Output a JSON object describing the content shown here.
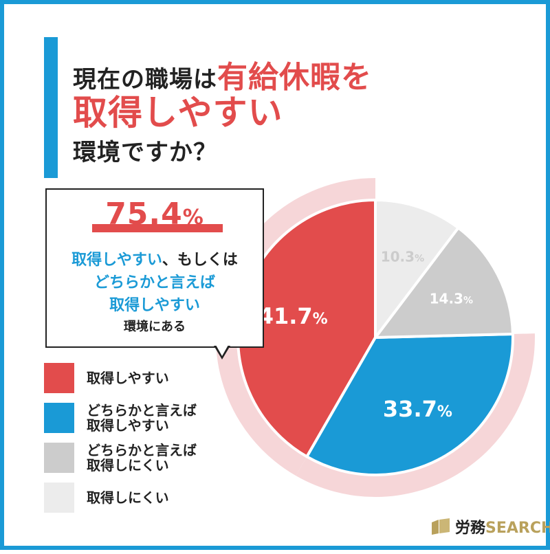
{
  "title": {
    "line1_black": "現在の職場は",
    "line1_red": "有給休暇を",
    "line2_red": "取得しやすい",
    "line3_black": "環境ですか？"
  },
  "callout": {
    "percent_number": "75.4",
    "percent_sign": "%",
    "line1_blue": "取得しやすい",
    "line1_dark": "、もしくは",
    "line2": "どちらかと言えば",
    "line3": "取得しやすい",
    "line4": "環境にある"
  },
  "legend": [
    {
      "label": "取得しやすい",
      "color": "#e24c4c"
    },
    {
      "label": "どちらかと言えば\n取得しやすい",
      "color": "#1a9ad6"
    },
    {
      "label": "どちらかと言えば\n取得しにくい",
      "color": "#cccccc"
    },
    {
      "label": "取得しにくい",
      "color": "#ececec"
    }
  ],
  "chart_data": {
    "type": "pie",
    "title": "現在の職場は有給休暇を取得しやすい環境ですか？",
    "series": [
      {
        "name": "取得しやすい",
        "value": 41.7,
        "label": "41.7",
        "color": "#e24c4c",
        "text_color": "#ffffff"
      },
      {
        "name": "どちらかと言えば取得しやすい",
        "value": 33.7,
        "label": "33.7",
        "color": "#1a9ad6",
        "text_color": "#ffffff"
      },
      {
        "name": "どちらかと言えば取得しにくい",
        "value": 14.3,
        "label": "14.3",
        "color": "#cccccc",
        "text_color": "#ffffff"
      },
      {
        "name": "取得しにくい",
        "value": 10.3,
        "label": "10.3",
        "color": "#ececec",
        "text_color": "#cccccc"
      }
    ],
    "percent_sign": "%",
    "highlight_ring_color": "#f6d6d8",
    "start": "12 o'clock, counterclockwise"
  },
  "brand": {
    "name_jp": "労務",
    "name_en": "SEARCH"
  }
}
